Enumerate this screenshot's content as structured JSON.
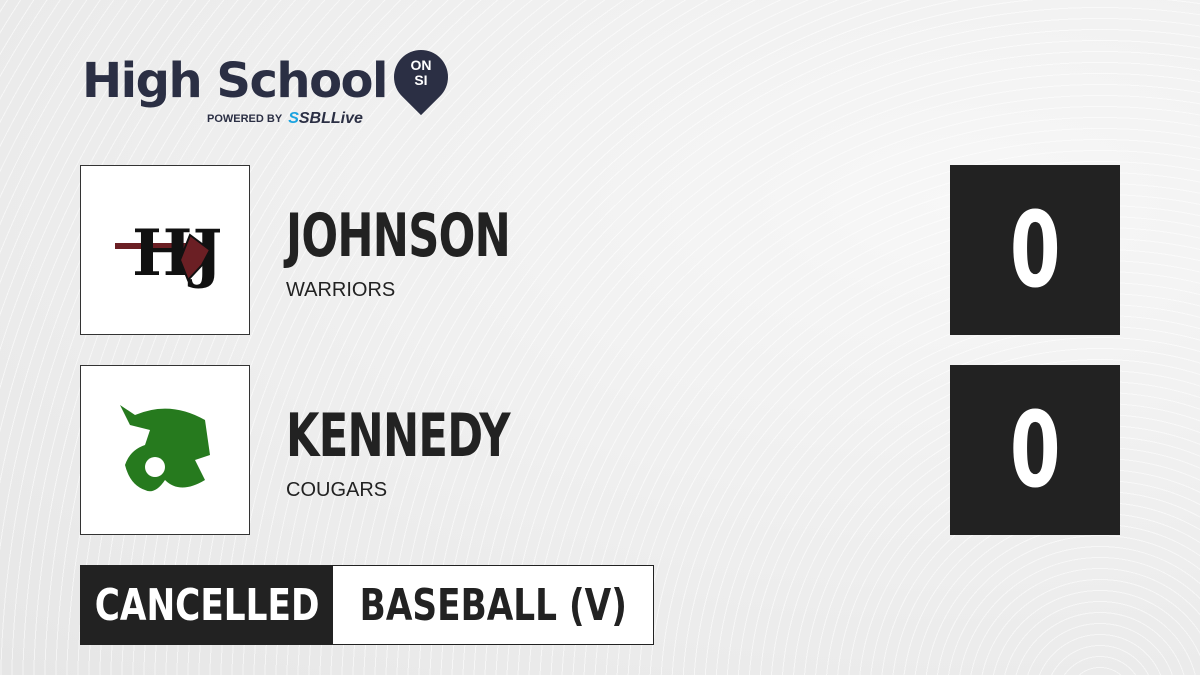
{
  "brand": {
    "title": "High School",
    "badge_top": "ON",
    "badge_bottom": "SI",
    "powered_by": "POWERED BY",
    "partner_a": "SBL",
    "partner_b": "ive",
    "partner_icon": "S"
  },
  "teams": [
    {
      "name": "JOHNSON",
      "mascot": "WARRIORS",
      "score": "0",
      "logo": "HJ",
      "logo_color": "#6b1f24"
    },
    {
      "name": "KENNEDY",
      "mascot": "COUGARS",
      "score": "0",
      "logo": "cougar-head",
      "logo_color": "#267a1e"
    }
  ],
  "game": {
    "status": "CANCELLED",
    "sport": "BASEBALL (V)"
  }
}
